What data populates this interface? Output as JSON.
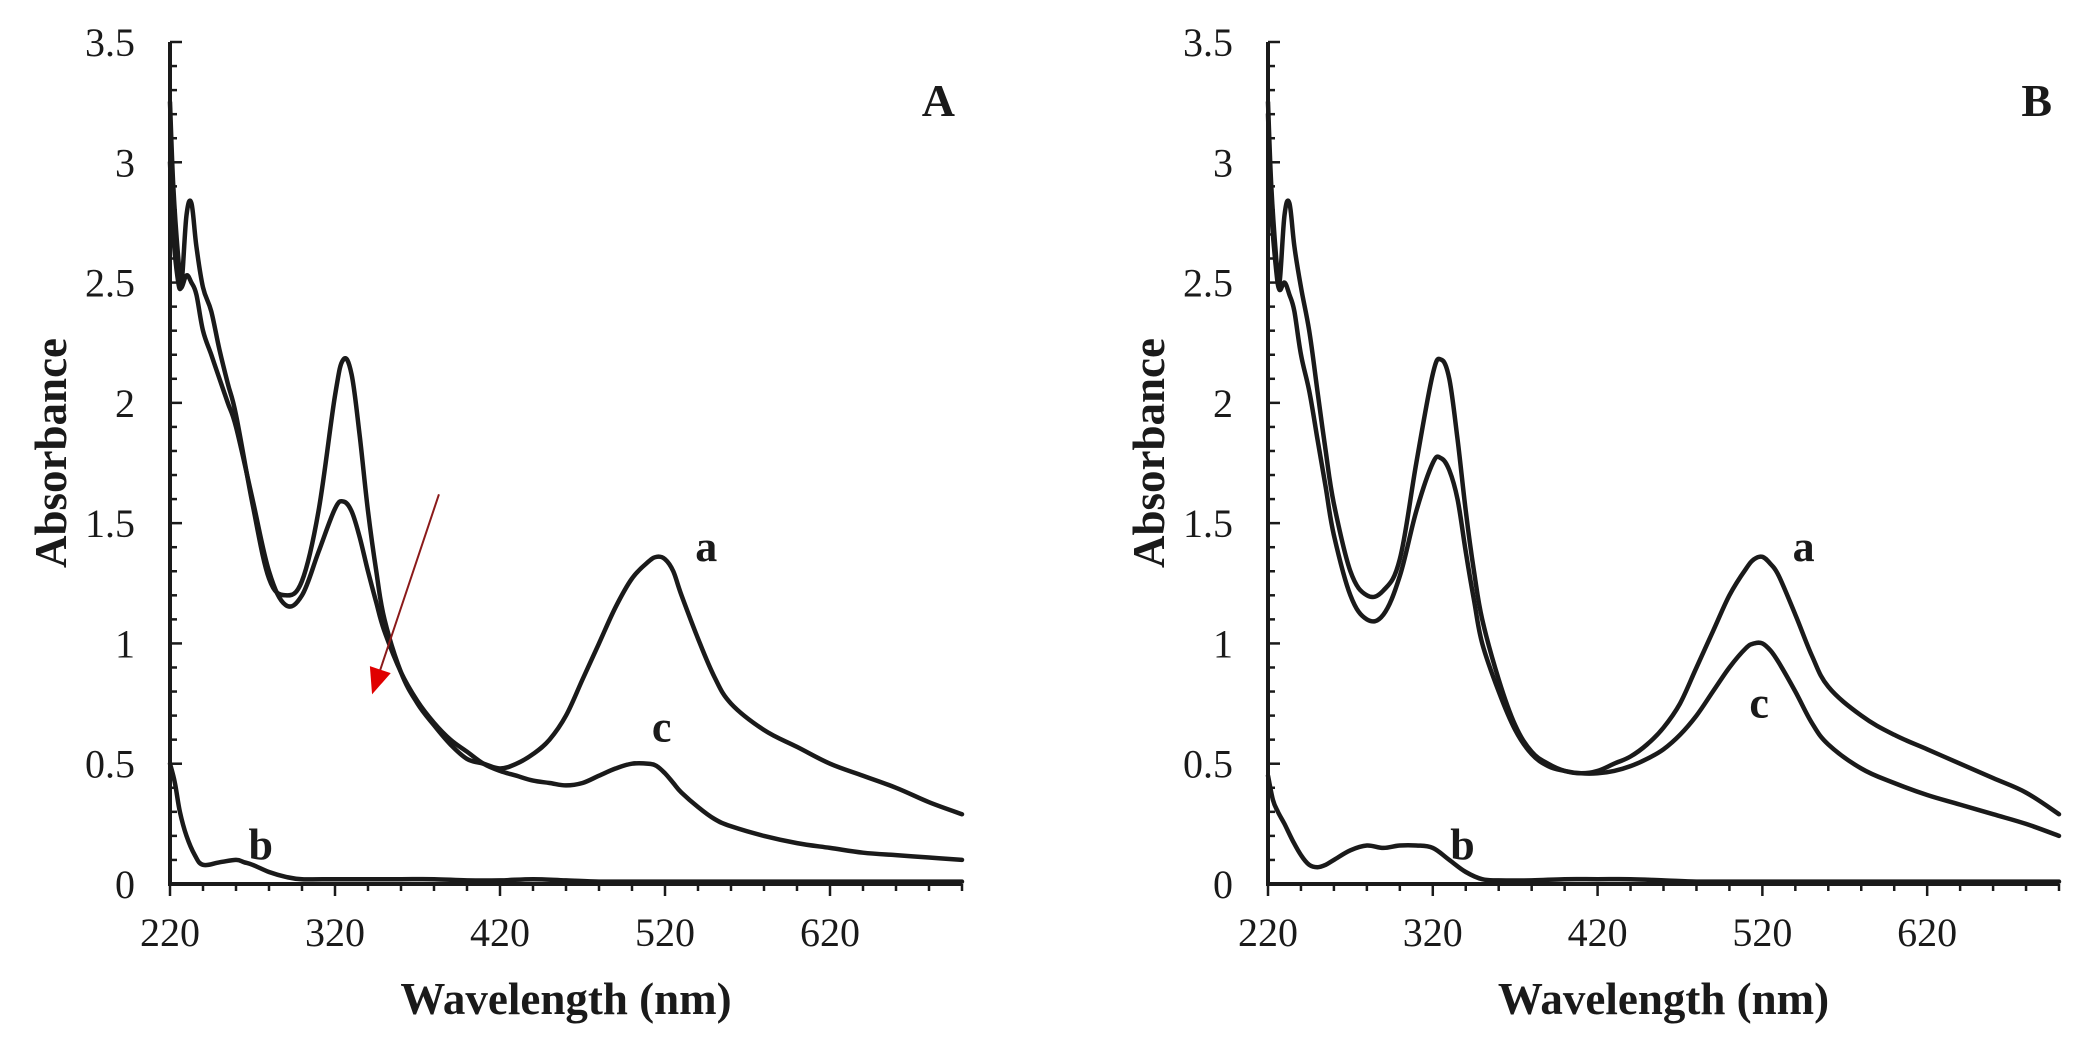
{
  "chart_data": [
    {
      "type": "line",
      "panel_label": "A",
      "xlabel": "Wavelength (nm)",
      "ylabel": "Absorbance",
      "xlim": [
        220,
        700
      ],
      "ylim": [
        0,
        3.5
      ],
      "xticks": [
        "220",
        "320",
        "420",
        "520",
        "620"
      ],
      "yticks": [
        "0",
        "0.5",
        "1",
        "1.5",
        "2",
        "2.5",
        "3",
        "3.5"
      ],
      "grid": false,
      "arrow_color": "#e00000",
      "series": [
        {
          "name": "a",
          "label_at": [
            545,
            1.4
          ],
          "x": [
            220,
            222,
            225,
            227,
            230,
            233,
            236,
            240,
            245,
            250,
            255,
            260,
            270,
            280,
            290,
            300,
            310,
            320,
            325,
            330,
            335,
            340,
            345,
            350,
            360,
            370,
            380,
            390,
            400,
            410,
            420,
            430,
            440,
            450,
            460,
            470,
            480,
            490,
            500,
            510,
            515,
            520,
            525,
            530,
            540,
            550,
            560,
            580,
            600,
            620,
            640,
            660,
            680,
            700
          ],
          "y": [
            3.25,
            2.9,
            2.6,
            2.5,
            2.78,
            2.83,
            2.65,
            2.48,
            2.38,
            2.22,
            2.08,
            1.95,
            1.58,
            1.27,
            1.2,
            1.26,
            1.55,
            2.03,
            2.18,
            2.12,
            1.86,
            1.55,
            1.3,
            1.1,
            0.88,
            0.75,
            0.66,
            0.58,
            0.52,
            0.5,
            0.48,
            0.5,
            0.54,
            0.6,
            0.7,
            0.85,
            1.0,
            1.15,
            1.27,
            1.34,
            1.36,
            1.35,
            1.3,
            1.2,
            1.02,
            0.86,
            0.75,
            0.64,
            0.57,
            0.5,
            0.45,
            0.4,
            0.34,
            0.29
          ]
        },
        {
          "name": "b",
          "label_at": [
            275,
            0.16
          ],
          "x": [
            220,
            223,
            226,
            230,
            235,
            240,
            250,
            260,
            265,
            270,
            280,
            290,
            300,
            320,
            340,
            360,
            380,
            400,
            420,
            440,
            460,
            480,
            500,
            520,
            540,
            560,
            580,
            600,
            620,
            640,
            660,
            680,
            700
          ],
          "y": [
            0.5,
            0.42,
            0.3,
            0.2,
            0.12,
            0.08,
            0.09,
            0.1,
            0.09,
            0.08,
            0.05,
            0.03,
            0.02,
            0.02,
            0.02,
            0.02,
            0.02,
            0.015,
            0.015,
            0.02,
            0.015,
            0.01,
            0.01,
            0.01,
            0.01,
            0.01,
            0.01,
            0.01,
            0.01,
            0.01,
            0.01,
            0.01,
            0.01
          ]
        },
        {
          "name": "c",
          "label_at": [
            518,
            0.65
          ],
          "x": [
            220,
            222,
            225,
            227,
            230,
            233,
            236,
            240,
            245,
            250,
            255,
            260,
            270,
            280,
            290,
            300,
            310,
            320,
            325,
            330,
            335,
            340,
            345,
            350,
            360,
            370,
            380,
            390,
            400,
            410,
            420,
            430,
            440,
            450,
            460,
            470,
            480,
            490,
            500,
            510,
            515,
            520,
            525,
            530,
            540,
            550,
            560,
            580,
            600,
            620,
            640,
            660,
            680,
            700
          ],
          "y": [
            3.0,
            2.7,
            2.5,
            2.48,
            2.53,
            2.5,
            2.45,
            2.3,
            2.2,
            2.1,
            2.0,
            1.9,
            1.6,
            1.3,
            1.16,
            1.2,
            1.38,
            1.56,
            1.59,
            1.55,
            1.44,
            1.3,
            1.17,
            1.05,
            0.88,
            0.76,
            0.67,
            0.6,
            0.55,
            0.5,
            0.47,
            0.45,
            0.43,
            0.42,
            0.41,
            0.42,
            0.45,
            0.48,
            0.5,
            0.5,
            0.49,
            0.46,
            0.42,
            0.38,
            0.32,
            0.27,
            0.24,
            0.2,
            0.17,
            0.15,
            0.13,
            0.12,
            0.11,
            0.1
          ]
        }
      ],
      "arrow": {
        "from": [
          383,
          1.62
        ],
        "to": [
          344,
          0.82
        ]
      }
    },
    {
      "type": "line",
      "panel_label": "B",
      "xlabel": "Wavelength (nm)",
      "ylabel": "Absorbance",
      "xlim": [
        220,
        700
      ],
      "ylim": [
        0,
        3.5
      ],
      "xticks": [
        "220",
        "320",
        "420",
        "520",
        "620"
      ],
      "yticks": [
        "0",
        "0.5",
        "1",
        "1.5",
        "2",
        "2.5",
        "3",
        "3.5"
      ],
      "grid": false,
      "series": [
        {
          "name": "a",
          "label_at": [
            545,
            1.4
          ],
          "x": [
            220,
            222,
            225,
            227,
            230,
            233,
            236,
            240,
            245,
            250,
            255,
            260,
            270,
            280,
            290,
            300,
            310,
            320,
            325,
            330,
            335,
            340,
            345,
            350,
            360,
            370,
            380,
            390,
            400,
            410,
            420,
            430,
            440,
            450,
            460,
            470,
            480,
            490,
            500,
            510,
            515,
            520,
            525,
            530,
            540,
            550,
            560,
            580,
            600,
            620,
            640,
            660,
            680,
            700
          ],
          "y": [
            3.25,
            2.9,
            2.6,
            2.5,
            2.78,
            2.83,
            2.65,
            2.48,
            2.3,
            2.05,
            1.8,
            1.58,
            1.3,
            1.2,
            1.22,
            1.35,
            1.75,
            2.12,
            2.18,
            2.1,
            1.85,
            1.55,
            1.3,
            1.1,
            0.85,
            0.66,
            0.55,
            0.5,
            0.47,
            0.46,
            0.47,
            0.5,
            0.53,
            0.58,
            0.65,
            0.75,
            0.9,
            1.05,
            1.2,
            1.31,
            1.35,
            1.36,
            1.33,
            1.28,
            1.12,
            0.95,
            0.82,
            0.7,
            0.62,
            0.56,
            0.5,
            0.44,
            0.38,
            0.29
          ]
        },
        {
          "name": "b",
          "label_at": [
            338,
            0.16
          ],
          "x": [
            220,
            223,
            226,
            230,
            235,
            240,
            245,
            250,
            255,
            260,
            270,
            280,
            290,
            300,
            310,
            320,
            330,
            340,
            350,
            360,
            380,
            400,
            420,
            440,
            460,
            480,
            500,
            520,
            540,
            560,
            580,
            600,
            620,
            640,
            660,
            680,
            700
          ],
          "y": [
            0.45,
            0.35,
            0.3,
            0.25,
            0.18,
            0.12,
            0.08,
            0.07,
            0.08,
            0.1,
            0.14,
            0.16,
            0.15,
            0.16,
            0.16,
            0.15,
            0.1,
            0.05,
            0.02,
            0.015,
            0.015,
            0.02,
            0.02,
            0.02,
            0.015,
            0.01,
            0.01,
            0.01,
            0.01,
            0.01,
            0.01,
            0.01,
            0.01,
            0.01,
            0.01,
            0.01,
            0.01
          ]
        },
        {
          "name": "c",
          "label_at": [
            518,
            0.75
          ],
          "x": [
            220,
            222,
            225,
            227,
            230,
            233,
            236,
            240,
            245,
            250,
            255,
            260,
            270,
            280,
            290,
            300,
            310,
            320,
            325,
            330,
            335,
            340,
            345,
            350,
            360,
            370,
            380,
            390,
            400,
            410,
            420,
            430,
            440,
            450,
            460,
            470,
            480,
            490,
            500,
            510,
            515,
            520,
            525,
            530,
            540,
            550,
            560,
            580,
            600,
            620,
            640,
            660,
            680,
            700
          ],
          "y": [
            3.2,
            2.8,
            2.55,
            2.47,
            2.5,
            2.45,
            2.38,
            2.2,
            2.05,
            1.85,
            1.65,
            1.45,
            1.2,
            1.1,
            1.12,
            1.28,
            1.55,
            1.75,
            1.77,
            1.72,
            1.6,
            1.38,
            1.18,
            1.0,
            0.8,
            0.64,
            0.54,
            0.49,
            0.47,
            0.46,
            0.46,
            0.47,
            0.49,
            0.52,
            0.56,
            0.62,
            0.7,
            0.8,
            0.9,
            0.98,
            1.0,
            1.0,
            0.97,
            0.92,
            0.8,
            0.67,
            0.58,
            0.48,
            0.42,
            0.37,
            0.33,
            0.29,
            0.25,
            0.2
          ]
        }
      ]
    }
  ]
}
